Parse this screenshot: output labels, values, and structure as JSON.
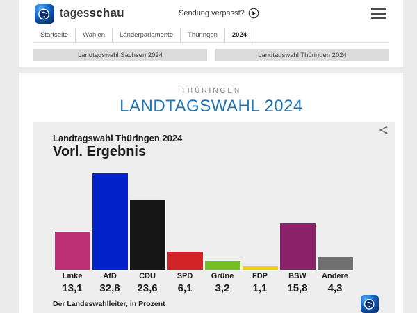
{
  "header": {
    "brand_prefix": "tages",
    "brand_suffix": "schau",
    "broadcast_link": "Sendung verpasst?"
  },
  "breadcrumb": [
    "Startseite",
    "Wahlen",
    "Länderparlamente",
    "Thüringen",
    "2024"
  ],
  "nav_buttons": [
    "Landtagswahl Sachsen 2024",
    "Landtagswahl Thüringen 2024"
  ],
  "main": {
    "kicker": "THÜRINGEN",
    "title": "LANDTAGSWAHL 2024",
    "title_color": "#2273ae"
  },
  "chart_data": {
    "type": "bar",
    "title": "Landtagswahl Thüringen 2024",
    "subtitle": "Vorl. Ergebnis",
    "source": "Der Landeswahlleiter, in Prozent",
    "unit": "Prozent",
    "categories": [
      "Linke",
      "AfD",
      "CDU",
      "SPD",
      "Grüne",
      "FDP",
      "BSW",
      "Andere"
    ],
    "values": [
      13.1,
      32.8,
      23.6,
      6.1,
      3.2,
      1.1,
      15.8,
      4.3
    ],
    "value_labels": [
      "13,1",
      "32,8",
      "23,6",
      "6,1",
      "3,2",
      "1,1",
      "15,8",
      "4,3"
    ],
    "bar_colors": [
      "#be3075",
      "#0221c8",
      "#161616",
      "#d22328",
      "#74bd22",
      "#f9cc13",
      "#8a2169",
      "#6f6f6f"
    ],
    "ylim": [
      0,
      35
    ],
    "grid": false,
    "legend": false
  }
}
